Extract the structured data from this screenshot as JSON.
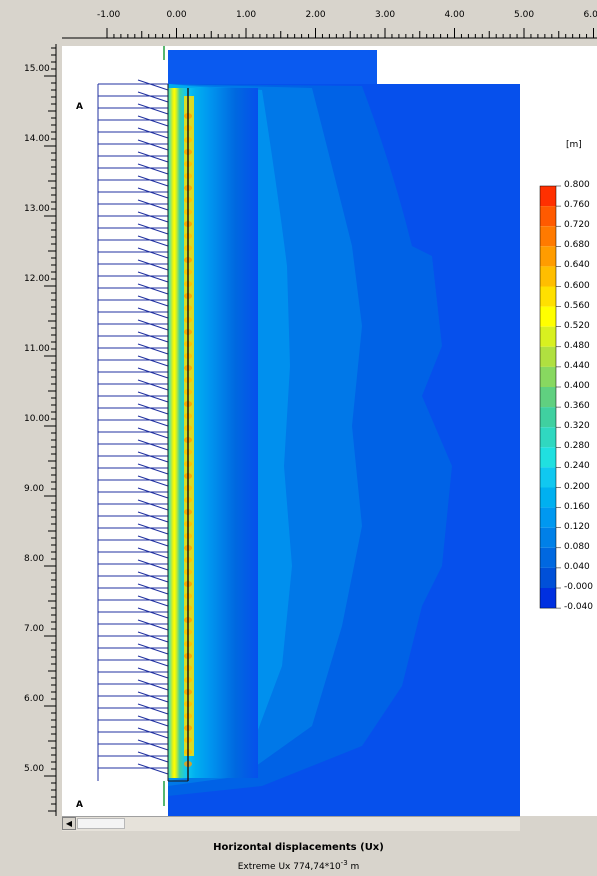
{
  "x_ticks": [
    "-1.00",
    "0.00",
    "1.00",
    "2.00",
    "3.00",
    "4.00",
    "5.00",
    "6.00"
  ],
  "y_ticks": [
    "15.00",
    "14.00",
    "13.00",
    "12.00",
    "11.00",
    "10.00",
    "9.00",
    "8.00",
    "7.00",
    "6.00",
    "5.00"
  ],
  "legend": {
    "unit": "[m]",
    "values": [
      "0.800",
      "0.760",
      "0.720",
      "0.680",
      "0.640",
      "0.600",
      "0.560",
      "0.520",
      "0.480",
      "0.440",
      "0.400",
      "0.360",
      "0.320",
      "0.280",
      "0.240",
      "0.200",
      "0.160",
      "0.120",
      "0.080",
      "0.040",
      "-0.000",
      "-0.040"
    ],
    "colors": [
      "#ff3000",
      "#ff5a00",
      "#ff7a00",
      "#ff9c00",
      "#ffbe00",
      "#ffe000",
      "#ffff00",
      "#d8f020",
      "#b0e040",
      "#88d860",
      "#60d080",
      "#40d0a0",
      "#30d8c0",
      "#20e0e0",
      "#10c8f0",
      "#00b0f0",
      "#0098f0",
      "#0080e8",
      "#0068e0",
      "#0050d8",
      "#0030e0",
      "#0010d0"
    ]
  },
  "markers": {
    "top": "A",
    "bottom": "A"
  },
  "title": "Horizontal displacements (Ux)",
  "extreme": {
    "prefix": "Extreme Ux 774,74*10",
    "exp": "-3",
    "unit": " m"
  },
  "colors": {
    "background_field": "#0650ec",
    "wall": "#1a1a1a",
    "nails": "#2030a0"
  }
}
